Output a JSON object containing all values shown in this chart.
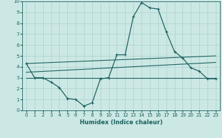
{
  "xlabel": "Humidex (Indice chaleur)",
  "bg_color": "#cce8e4",
  "grid_color": "#aad0cc",
  "line_color": "#1a6060",
  "xlim": [
    -0.5,
    23.5
  ],
  "ylim": [
    0,
    10
  ],
  "x_ticks": [
    0,
    1,
    2,
    3,
    4,
    5,
    6,
    7,
    8,
    9,
    10,
    11,
    12,
    13,
    14,
    15,
    16,
    17,
    18,
    19,
    20,
    21,
    22,
    23
  ],
  "y_ticks": [
    0,
    1,
    2,
    3,
    4,
    5,
    6,
    7,
    8,
    9,
    10
  ],
  "line1_x": [
    0,
    1,
    2,
    3,
    4,
    5,
    6,
    7,
    8,
    9,
    10,
    11,
    12,
    13,
    14,
    15,
    16,
    17,
    18,
    19,
    20,
    21,
    22,
    23
  ],
  "line1_y": [
    4.3,
    3.0,
    3.0,
    2.6,
    2.1,
    1.1,
    1.0,
    0.4,
    0.7,
    2.9,
    3.0,
    5.1,
    5.1,
    8.6,
    9.9,
    9.4,
    9.3,
    7.2,
    5.4,
    4.8,
    3.9,
    3.6,
    2.9,
    2.9
  ],
  "line2_x": [
    0,
    23
  ],
  "line2_y": [
    4.3,
    5.0
  ],
  "line3_x": [
    0,
    23
  ],
  "line3_y": [
    3.5,
    4.4
  ],
  "line4_x": [
    0,
    23
  ],
  "line4_y": [
    3.0,
    3.0
  ]
}
